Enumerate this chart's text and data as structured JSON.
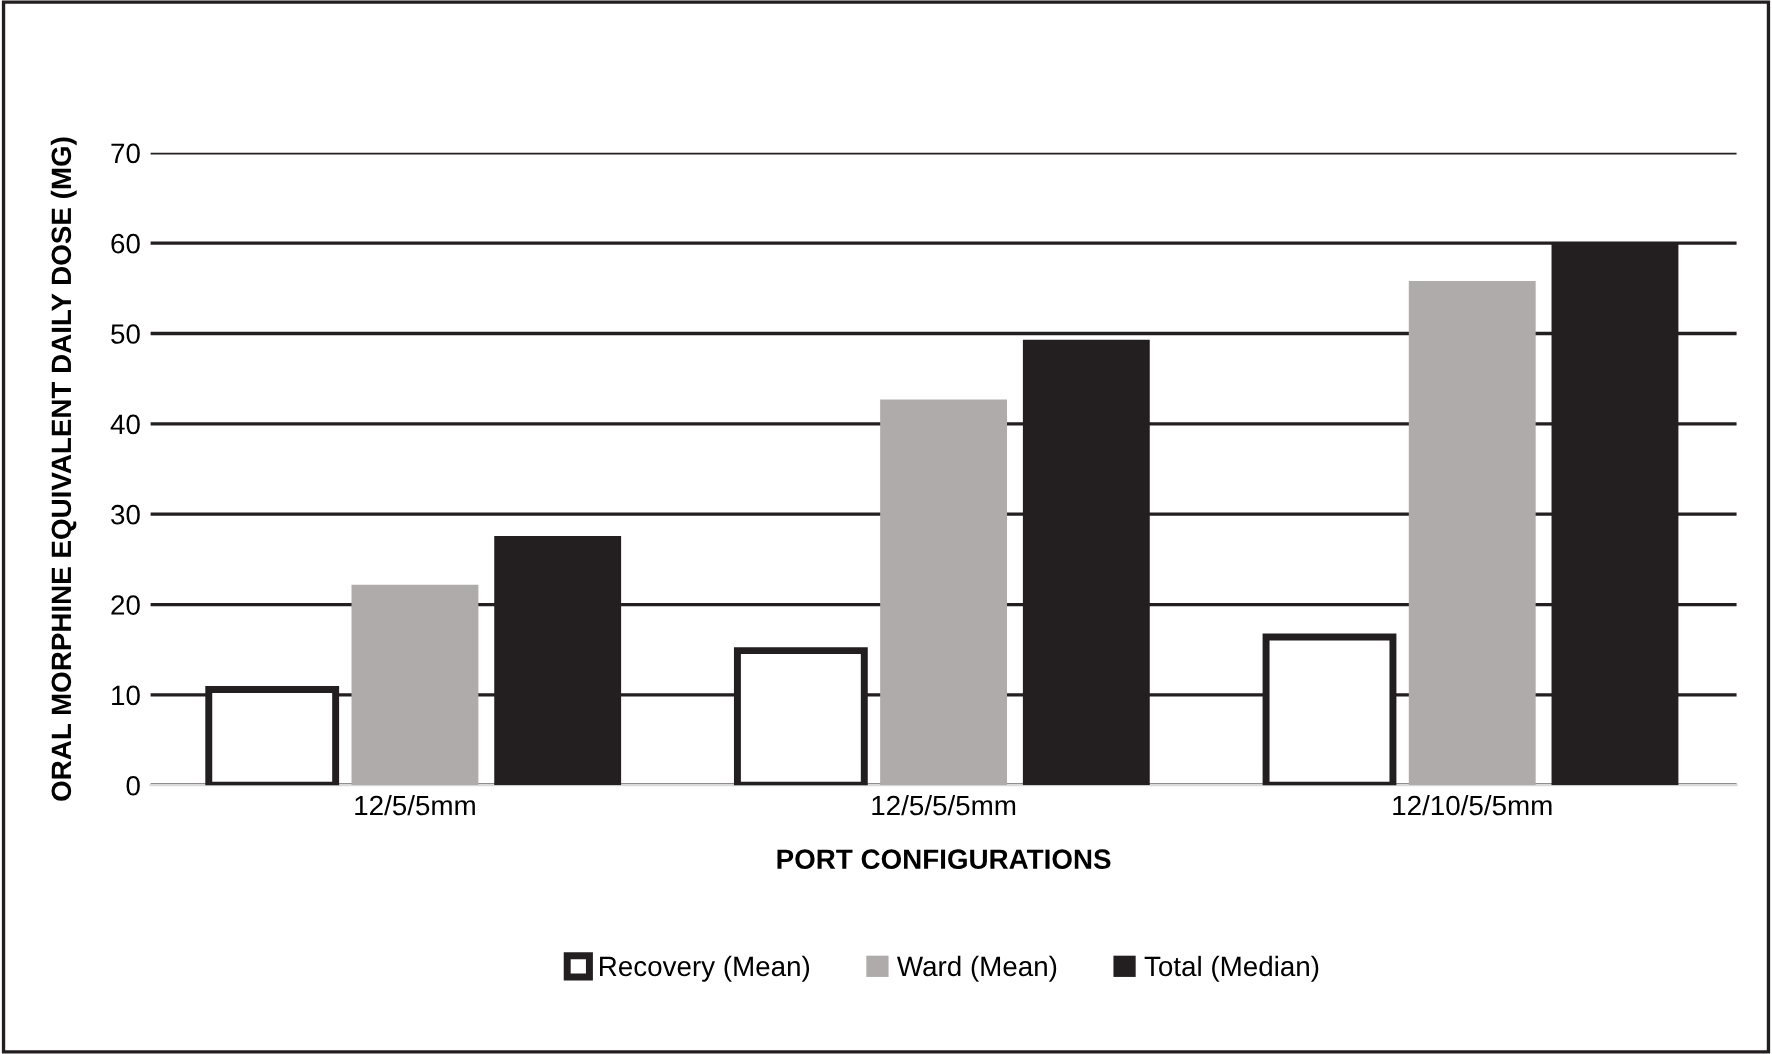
{
  "chart_data": {
    "type": "bar",
    "xlabel": "PORT CONFIGURATIONS",
    "ylabel": "ORAL MORPHINE EQUIVALENT DAILY DOSE (MG)",
    "categories": [
      "12/5/5mm",
      "12/5/5/5mm",
      "12/10/5/5mm"
    ],
    "series": [
      {
        "name": "Recovery (Mean)",
        "color": "#ffffff",
        "values": [
          10.6,
          14.9,
          16.4
        ]
      },
      {
        "name": "Ward (Mean)",
        "color": "#afabab",
        "values": [
          22.2,
          42.7,
          55.8
        ]
      },
      {
        "name": "Total (Median)",
        "color": "#231f20",
        "values": [
          27.6,
          49.3,
          60
        ]
      }
    ],
    "ylim": [
      0,
      70
    ],
    "yticks": [
      0,
      10,
      20,
      30,
      40,
      50,
      60,
      70
    ],
    "grid": "y",
    "legend": "bottom"
  }
}
